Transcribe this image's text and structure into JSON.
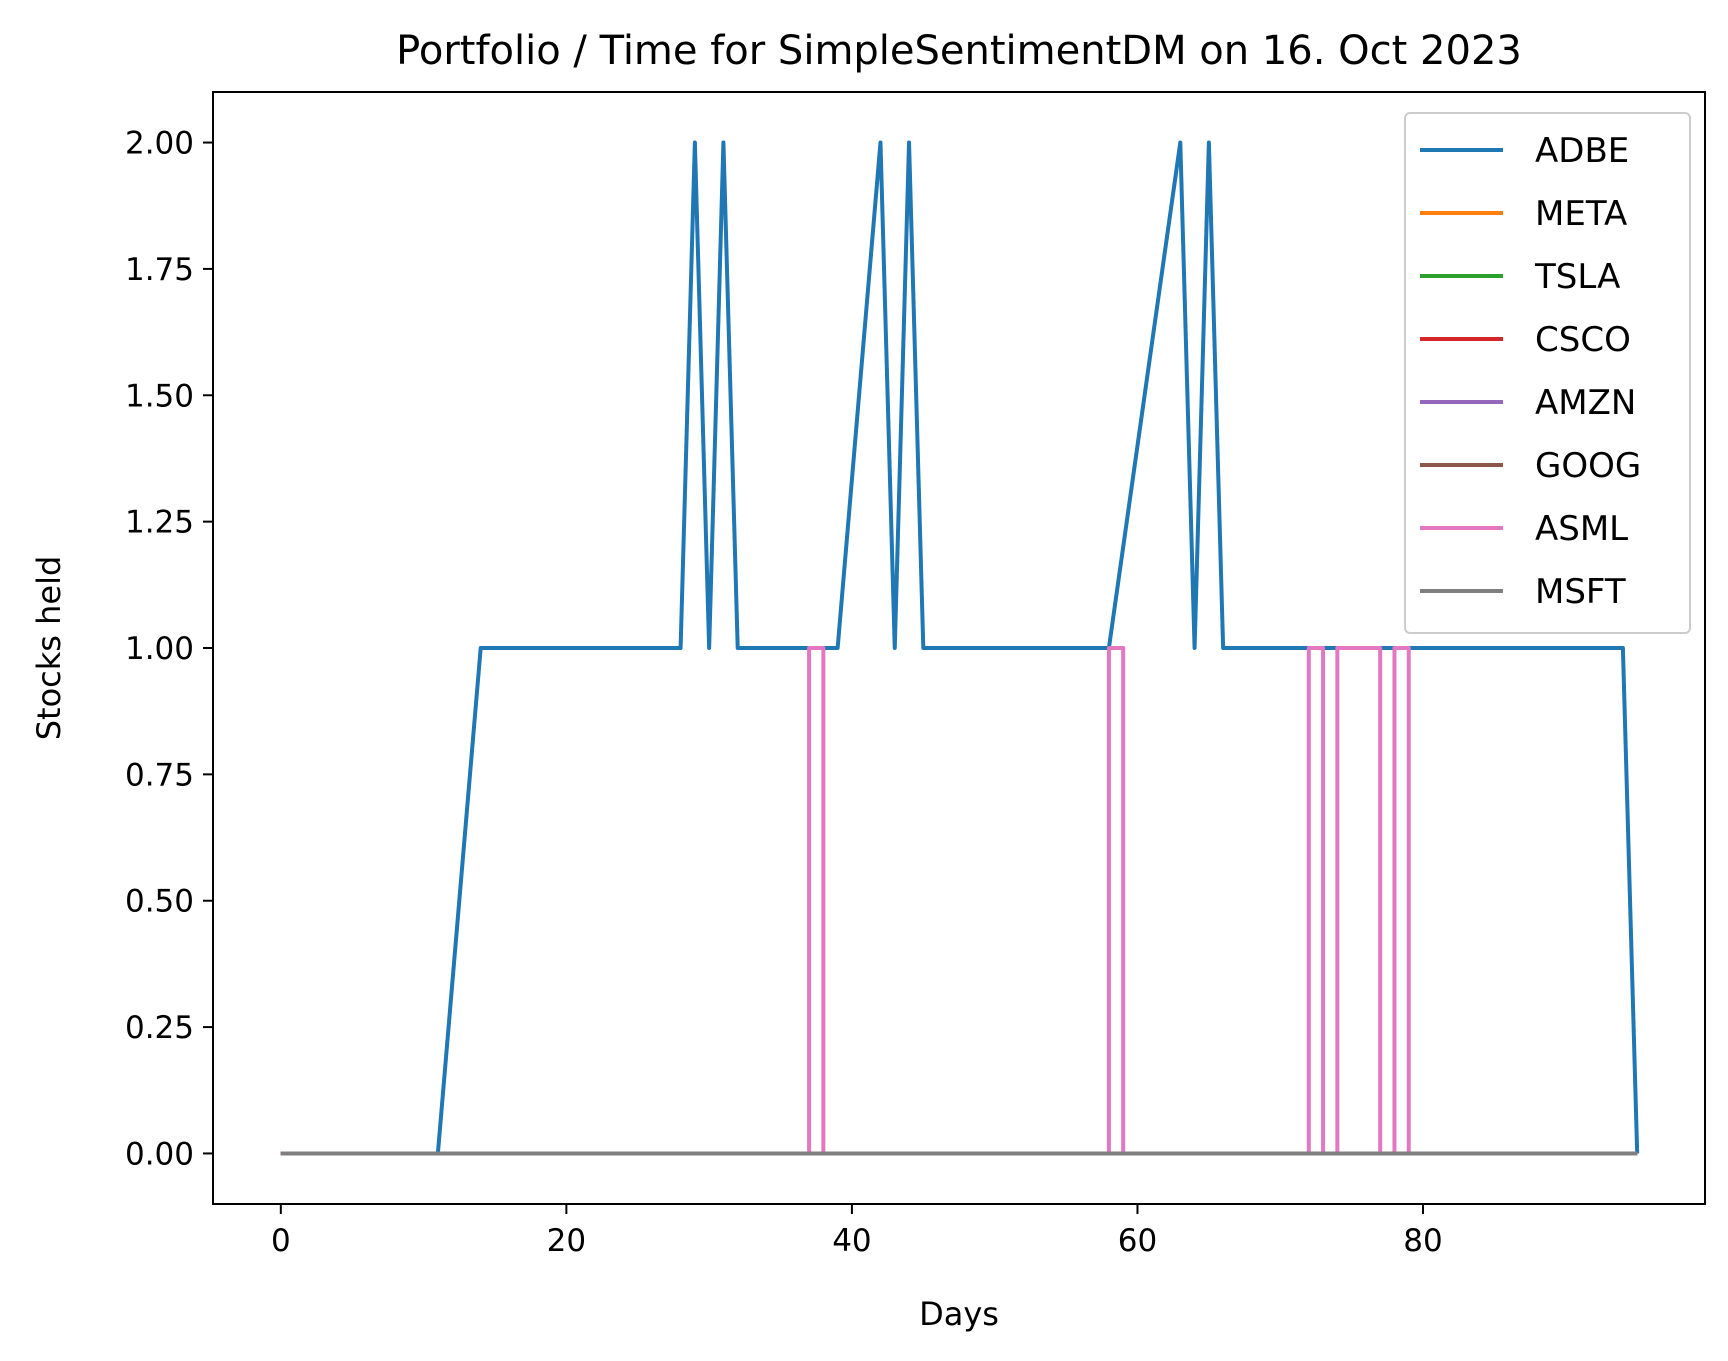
{
  "chart_data": {
    "type": "line",
    "title": "Portfolio / Time for SimpleSentimentDM on 16. Oct 2023",
    "xlabel": "Days",
    "ylabel": "Stocks held",
    "xlim": [
      -4.75,
      99.75
    ],
    "ylim": [
      -0.1,
      2.1
    ],
    "xticks": [
      0,
      20,
      40,
      60,
      80
    ],
    "xtick_labels": [
      "0",
      "20",
      "40",
      "60",
      "80"
    ],
    "yticks": [
      0,
      0.25,
      0.5,
      0.75,
      1,
      1.25,
      1.5,
      1.75,
      2
    ],
    "ytick_labels": [
      "0.00",
      "0.25",
      "0.50",
      "0.75",
      "1.00",
      "1.25",
      "1.50",
      "1.75",
      "2.00"
    ],
    "grid": false,
    "legend_position": "top-right",
    "series": [
      {
        "name": "ADBE",
        "color": "#1f77b4",
        "x": [
          0,
          11,
          14,
          28,
          29,
          30,
          31,
          32,
          39,
          42,
          43,
          44,
          45,
          58,
          63,
          64,
          65,
          66,
          94,
          95
        ],
        "y": [
          0,
          0,
          1,
          1,
          2,
          1,
          2,
          1,
          1,
          2,
          1,
          2,
          1,
          1,
          2,
          1,
          2,
          1,
          1,
          0
        ]
      },
      {
        "name": "META",
        "color": "#ff7f0e",
        "x": [
          0,
          95
        ],
        "y": [
          0,
          0
        ]
      },
      {
        "name": "TSLA",
        "color": "#2ca02c",
        "x": [
          0,
          95
        ],
        "y": [
          0,
          0
        ]
      },
      {
        "name": "CSCO",
        "color": "#d62728",
        "x": [
          0,
          95
        ],
        "y": [
          0,
          0
        ]
      },
      {
        "name": "AMZN",
        "color": "#9467bd",
        "x": [
          0,
          95
        ],
        "y": [
          0,
          0
        ]
      },
      {
        "name": "GOOG",
        "color": "#8c564b",
        "x": [
          0,
          95
        ],
        "y": [
          0,
          0
        ]
      },
      {
        "name": "ASML",
        "color": "#e377c2",
        "x": [
          0,
          37,
          37,
          38,
          38,
          58,
          58,
          59,
          59,
          72,
          72,
          73,
          73,
          74,
          74,
          77,
          77,
          78,
          78,
          79,
          79,
          95
        ],
        "y": [
          0,
          0,
          1,
          1,
          0,
          0,
          1,
          1,
          0,
          0,
          1,
          1,
          0,
          0,
          1,
          1,
          0,
          0,
          1,
          1,
          0,
          0
        ]
      },
      {
        "name": "MSFT",
        "color": "#7f7f7f",
        "x": [
          0,
          95
        ],
        "y": [
          0,
          0
        ]
      }
    ]
  }
}
